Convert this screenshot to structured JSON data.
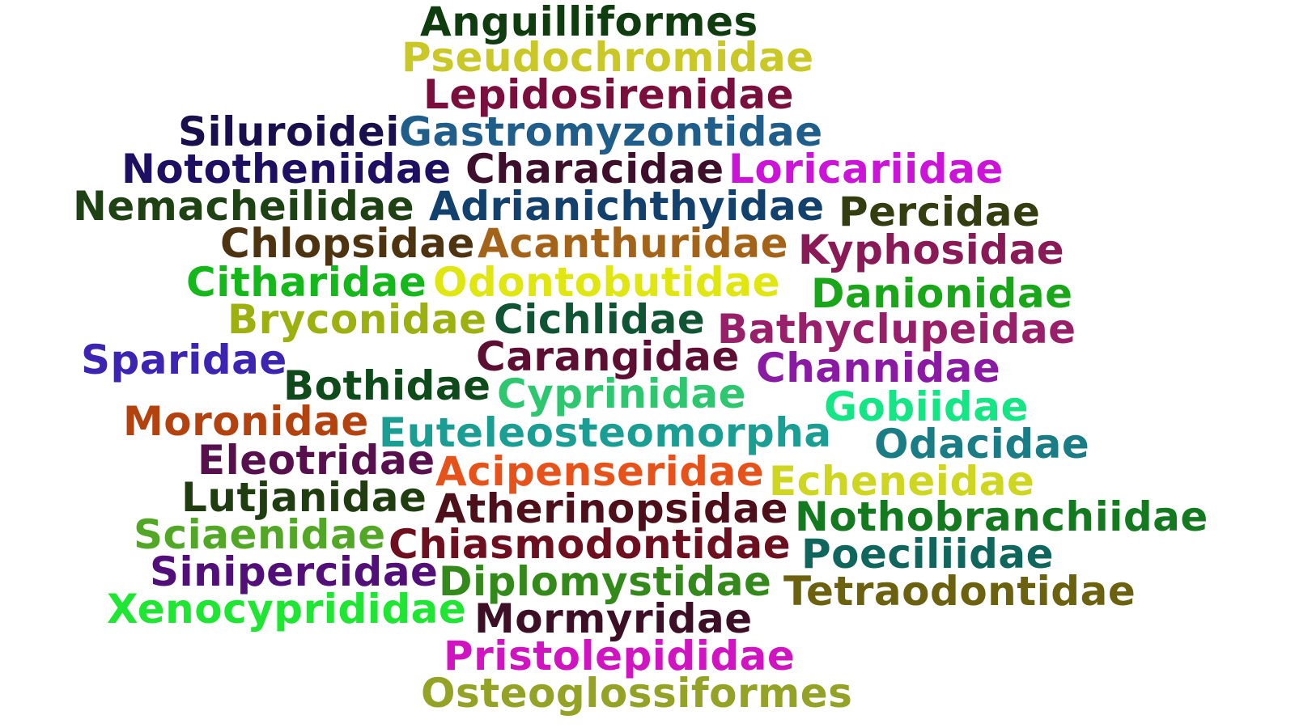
{
  "words": [
    {
      "text": "Anguilliformes",
      "color": "#0f3d0f"
    },
    {
      "text": "Pseudochromidae",
      "color": "#c9c826"
    },
    {
      "text": "Lepidosirenidae",
      "color": "#7a0f3d"
    },
    {
      "text": "Siluroidei",
      "color": "#1a0f4d"
    },
    {
      "text": "Gastromyzontidae",
      "color": "#1f5e8a"
    },
    {
      "text": "Nototheniidae",
      "color": "#1f0f63"
    },
    {
      "text": "Characidae",
      "color": "#3d0f2a"
    },
    {
      "text": "Loricariidae",
      "color": "#cc14d9"
    },
    {
      "text": "Nemacheilidae",
      "color": "#1f4214"
    },
    {
      "text": "Adrianichthyidae",
      "color": "#12416e"
    },
    {
      "text": "Percidae",
      "color": "#343d0f"
    },
    {
      "text": "Chlopsidae",
      "color": "#4d330f"
    },
    {
      "text": "Acanthuridae",
      "color": "#a3641a"
    },
    {
      "text": "Kyphosidae",
      "color": "#8a1a57"
    },
    {
      "text": "Citharidae",
      "color": "#14b81a"
    },
    {
      "text": "Odontobutidae",
      "color": "#e0e60f"
    },
    {
      "text": "Danionidae",
      "color": "#19a619"
    },
    {
      "text": "Bryconidae",
      "color": "#9cb00f"
    },
    {
      "text": "Cichlidae",
      "color": "#0f5433"
    },
    {
      "text": "Bathyclupeidae",
      "color": "#991f6b"
    },
    {
      "text": "Sparidae",
      "color": "#3d24b3"
    },
    {
      "text": "Carangidae",
      "color": "#5c0f33"
    },
    {
      "text": "Channidae",
      "color": "#8a1aa3"
    },
    {
      "text": "Bothidae",
      "color": "#0f4a1a"
    },
    {
      "text": "Cyprinidae",
      "color": "#2ec770"
    },
    {
      "text": "Gobiidae",
      "color": "#14e685"
    },
    {
      "text": "Moronidae",
      "color": "#b3420f"
    },
    {
      "text": "Euteleosteomorpha",
      "color": "#1a9e94"
    },
    {
      "text": "Odacidae",
      "color": "#1a7d85"
    },
    {
      "text": "Eleotridae",
      "color": "#570f4d"
    },
    {
      "text": "Acipenseridae",
      "color": "#e6521a"
    },
    {
      "text": "Echeneidae",
      "color": "#cfd61f"
    },
    {
      "text": "Lutjanidae",
      "color": "#1f3d0f"
    },
    {
      "text": "Atherinopsidae",
      "color": "#4d0f1a"
    },
    {
      "text": "Nothobranchiidae",
      "color": "#147a1f"
    },
    {
      "text": "Sciaenidae",
      "color": "#52a826"
    },
    {
      "text": "Chiasmodontidae",
      "color": "#6e0f1f"
    },
    {
      "text": "Poeciliidae",
      "color": "#0f665c"
    },
    {
      "text": "Sinipercidae",
      "color": "#520f7a"
    },
    {
      "text": "Diplomystidae",
      "color": "#338a1a"
    },
    {
      "text": "Tetraodontidae",
      "color": "#6b610f"
    },
    {
      "text": "Xenocyprididae",
      "color": "#1fe633"
    },
    {
      "text": "Mormyridae",
      "color": "#3d0f26"
    },
    {
      "text": "Pristolepididae",
      "color": "#d114c2"
    },
    {
      "text": "Osteoglossiformes",
      "color": "#94a326"
    }
  ]
}
